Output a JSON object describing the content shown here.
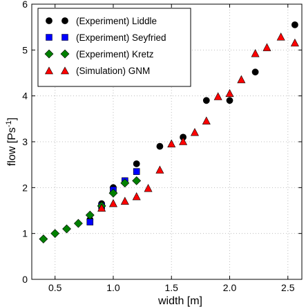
{
  "chart_data": {
    "type": "scatter",
    "xlabel": "width [m]",
    "ylabel_main": "flow [Ps",
    "ylabel_sup": "-1",
    "ylabel_end": "]",
    "xlim": [
      0.3,
      2.62
    ],
    "ylim": [
      0,
      6
    ],
    "xticks": [
      "0.5",
      "1.0",
      "1.5",
      "2.0",
      "2.5"
    ],
    "xtick_values": [
      0.5,
      1.0,
      1.5,
      2.0,
      2.5
    ],
    "yticks": [
      "0",
      "1",
      "2",
      "3",
      "4",
      "5",
      "6"
    ],
    "ytick_values": [
      0,
      1,
      2,
      3,
      4,
      5,
      6
    ],
    "grid": "dotted",
    "legend_position": "top-left",
    "series": [
      {
        "name": "(Experiment) Liddle",
        "marker": "circle",
        "color": "#000000",
        "points": [
          [
            0.8,
            1.3
          ],
          [
            0.9,
            1.65
          ],
          [
            1.0,
            2.0
          ],
          [
            1.1,
            2.15
          ],
          [
            1.2,
            2.52
          ],
          [
            1.4,
            2.9
          ],
          [
            1.6,
            3.1
          ],
          [
            1.8,
            3.9
          ],
          [
            2.0,
            3.9
          ],
          [
            2.22,
            4.52
          ],
          [
            2.56,
            5.55
          ]
        ]
      },
      {
        "name": "(Experiment) Seyfried",
        "marker": "square",
        "color": "#0000ff",
        "points": [
          [
            0.8,
            1.25
          ],
          [
            0.9,
            1.6
          ],
          [
            1.0,
            1.95
          ],
          [
            1.1,
            2.15
          ],
          [
            1.2,
            2.35
          ]
        ]
      },
      {
        "name": "(Experiment) Kretz",
        "marker": "diamond",
        "color": "#008000",
        "points": [
          [
            0.4,
            0.88
          ],
          [
            0.5,
            1.0
          ],
          [
            0.6,
            1.1
          ],
          [
            0.7,
            1.22
          ],
          [
            0.8,
            1.4
          ],
          [
            0.9,
            1.6
          ],
          [
            1.0,
            1.88
          ],
          [
            1.1,
            2.1
          ],
          [
            1.2,
            2.15
          ]
        ]
      },
      {
        "name": "(Simulation) GNM",
        "marker": "triangle",
        "color": "#ff0000",
        "points": [
          [
            0.9,
            1.55
          ],
          [
            1.0,
            1.65
          ],
          [
            1.1,
            1.7
          ],
          [
            1.2,
            1.8
          ],
          [
            1.3,
            1.98
          ],
          [
            1.4,
            2.38
          ],
          [
            1.5,
            2.95
          ],
          [
            1.6,
            3.0
          ],
          [
            1.7,
            3.2
          ],
          [
            1.8,
            3.45
          ],
          [
            1.9,
            3.98
          ],
          [
            2.0,
            4.05
          ],
          [
            2.1,
            4.35
          ],
          [
            2.22,
            4.92
          ],
          [
            2.32,
            5.05
          ],
          [
            2.44,
            5.28
          ],
          [
            2.56,
            5.15
          ]
        ]
      }
    ]
  }
}
